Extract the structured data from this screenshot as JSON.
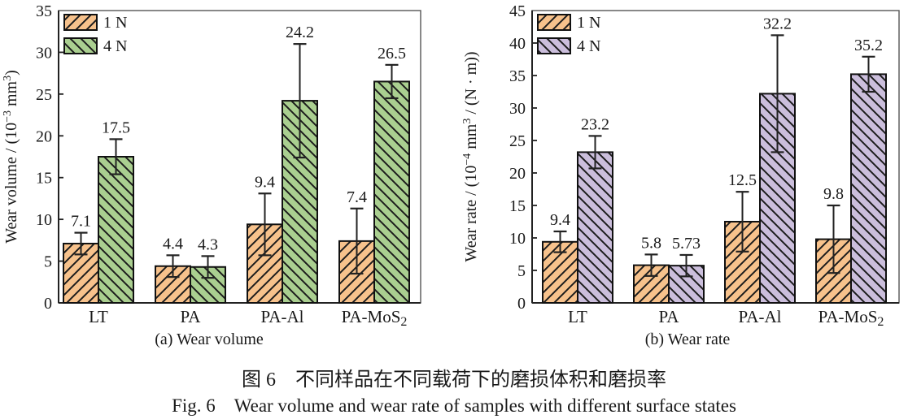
{
  "figure": {
    "captions": {
      "zh": "图 6　不同样品在不同载荷下的磨损体积和磨损率",
      "en": "Fig. 6　Wear volume and wear rate of samples with different surface states"
    }
  },
  "colors": {
    "series_1N": "#F7C28C",
    "series_4N_volume": "#AACF90",
    "series_4N_rate": "#CBBEDC",
    "hatch": "#1c1c1c",
    "bar_border": "#111111",
    "axis": "#222222",
    "frame": "#555555",
    "text": "#1a1a1a"
  },
  "chart_data": [
    {
      "type": "bar",
      "title": "(a) Wear volume",
      "ylabel_parts": [
        {
          "t": "Wear volume / (10"
        },
        {
          "t": "−3",
          "sup": true
        },
        {
          "t": " mm"
        },
        {
          "t": "3",
          "sup": true
        },
        {
          "t": ")"
        }
      ],
      "ylim": [
        0,
        35
      ],
      "ytick_step": 5,
      "grid": false,
      "legend_position": "top-left-inside",
      "categories": [
        [
          {
            "t": "LT"
          }
        ],
        [
          {
            "t": "PA"
          }
        ],
        [
          {
            "t": "PA-Al"
          }
        ],
        [
          {
            "t": "PA-MoS"
          },
          {
            "t": "2",
            "sub": true
          }
        ]
      ],
      "series": [
        {
          "name": "1 N",
          "color": "#F7C28C",
          "hatch": "/",
          "values": [
            7.1,
            4.4,
            9.4,
            7.4
          ],
          "errors": [
            1.3,
            1.3,
            3.7,
            3.9
          ],
          "labels": [
            "7.1",
            "4.4",
            "9.4",
            "7.4"
          ]
        },
        {
          "name": "4 N",
          "color": "#AACF90",
          "hatch": "\\",
          "values": [
            17.5,
            4.3,
            24.2,
            26.5
          ],
          "errors": [
            2.1,
            1.3,
            6.8,
            2.0
          ],
          "labels": [
            "17.5",
            "4.3",
            "24.2",
            "26.5"
          ]
        }
      ]
    },
    {
      "type": "bar",
      "title": "(b) Wear rate",
      "ylabel_parts": [
        {
          "t": "Wear rate / (10"
        },
        {
          "t": "−4",
          "sup": true
        },
        {
          "t": " mm"
        },
        {
          "t": "3",
          "sup": true
        },
        {
          "t": " / (N · m))"
        }
      ],
      "ylim": [
        0,
        45
      ],
      "ytick_step": 5,
      "grid": false,
      "legend_position": "top-left-inside",
      "categories": [
        [
          {
            "t": "LT"
          }
        ],
        [
          {
            "t": "PA"
          }
        ],
        [
          {
            "t": "PA-Al"
          }
        ],
        [
          {
            "t": "PA-MoS"
          },
          {
            "t": "2",
            "sub": true
          }
        ]
      ],
      "series": [
        {
          "name": "1 N",
          "color": "#F7C28C",
          "hatch": "/",
          "values": [
            9.4,
            5.8,
            12.5,
            9.8
          ],
          "errors": [
            1.6,
            1.65,
            4.6,
            5.2
          ],
          "labels": [
            "9.4",
            "5.8",
            "12.5",
            "9.8"
          ]
        },
        {
          "name": "4 N",
          "color": "#CBBEDC",
          "hatch": "\\",
          "values": [
            23.2,
            5.73,
            32.2,
            35.2
          ],
          "errors": [
            2.5,
            1.65,
            9.0,
            2.7
          ],
          "labels": [
            "23.2",
            "5.73",
            "32.2",
            "35.2"
          ]
        }
      ]
    }
  ]
}
